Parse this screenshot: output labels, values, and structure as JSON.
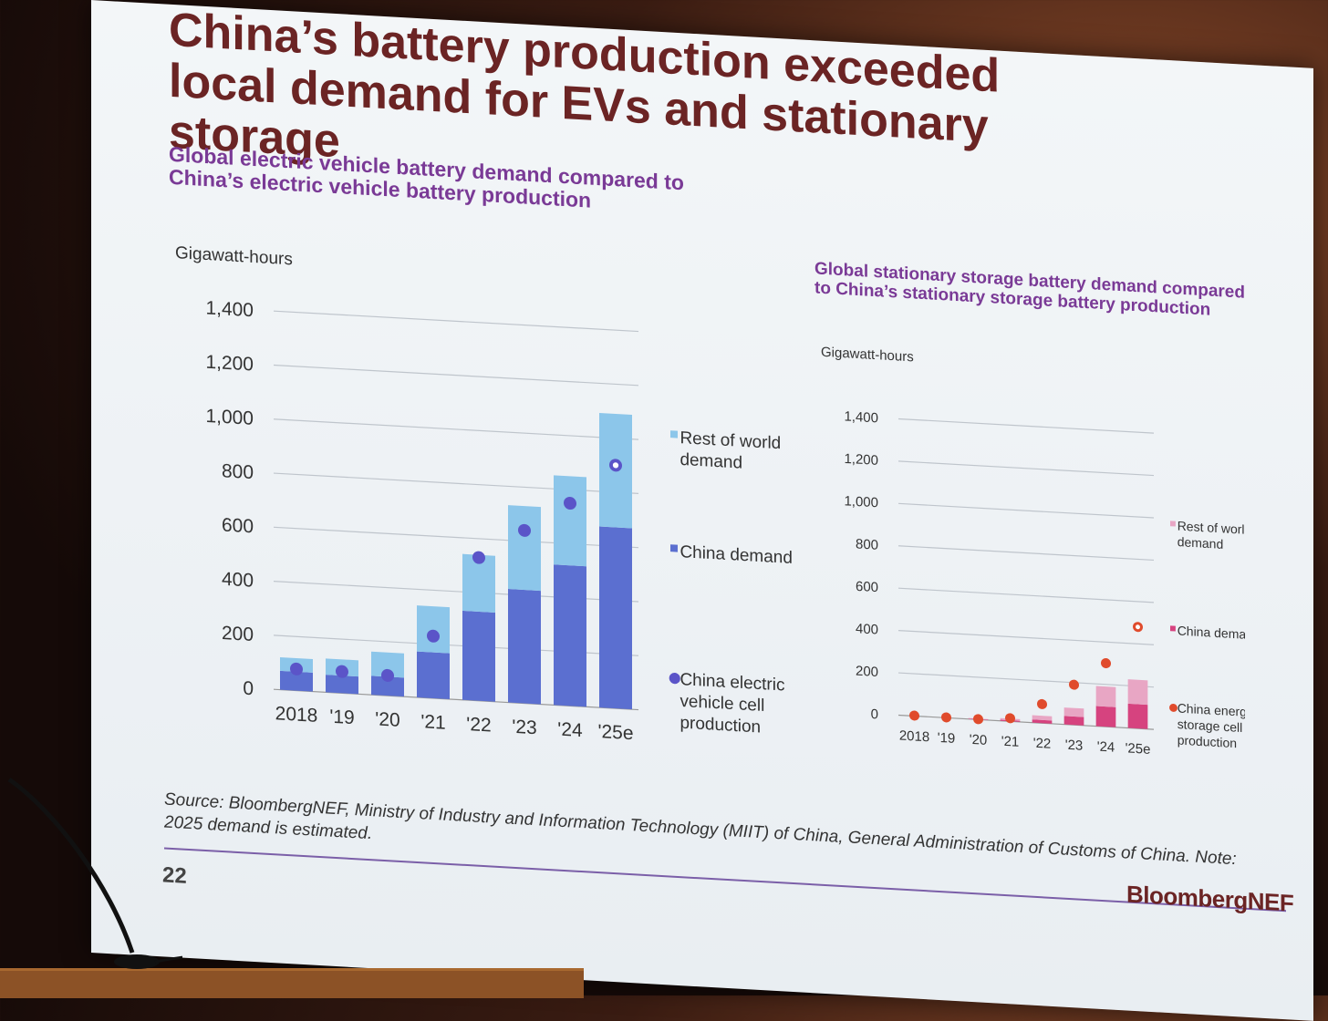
{
  "slide": {
    "title": "China’s battery production exceeded local demand for EVs and stationary storage",
    "source": "Source: BloombergNEF, Ministry of Industry and Information Technology (MIIT) of China, General Administration of Customs of China. Note: 2025 demand is estimated.",
    "page_number": "22",
    "brand": "BloombergNEF"
  },
  "chart_data": [
    {
      "type": "bar",
      "title": "Global electric vehicle battery demand compared to China’s electric vehicle battery production",
      "ylabel": "Gigawatt-hours",
      "ylim": [
        0,
        1400
      ],
      "yticks": [
        "0",
        "200",
        "400",
        "600",
        "800",
        "1,000",
        "1,200",
        "1,400"
      ],
      "categories": [
        "2018",
        "'19",
        "'20",
        "'21",
        "'22",
        "'23",
        "'24",
        "'25e"
      ],
      "series": [
        {
          "name": "China demand",
          "kind": "stacked-bar",
          "color": "#5b6fd0",
          "values": [
            70,
            65,
            70,
            170,
            330,
            420,
            520,
            670
          ]
        },
        {
          "name": "Rest of world demand",
          "kind": "stacked-bar",
          "color": "#8cc6ea",
          "values": [
            50,
            60,
            90,
            170,
            210,
            310,
            330,
            420
          ]
        },
        {
          "name": "China electric vehicle cell production",
          "kind": "marker",
          "color": "#5b54c8",
          "values": [
            80,
            80,
            75,
            230,
            530,
            640,
            750,
            900
          ]
        }
      ],
      "legend": [
        {
          "label": "Rest of world demand",
          "color": "#8cc6ea",
          "shape": "square"
        },
        {
          "label": "China demand",
          "color": "#5b6fd0",
          "shape": "square"
        },
        {
          "label": "China electric vehicle cell production",
          "color": "#5b54c8",
          "shape": "circle"
        }
      ]
    },
    {
      "type": "bar",
      "title": "Global stationary storage battery demand compared to China’s stationary storage battery production",
      "ylabel": "Gigawatt-hours",
      "ylim": [
        0,
        1400
      ],
      "yticks": [
        "0",
        "200",
        "400",
        "600",
        "800",
        "1,000",
        "1,200",
        "1,400"
      ],
      "categories": [
        "2018",
        "'19",
        "'20",
        "'21",
        "'22",
        "'23",
        "'24",
        "'25e"
      ],
      "series": [
        {
          "name": "China demand",
          "kind": "stacked-bar",
          "color": "#d6437f",
          "values": [
            0,
            0,
            2,
            5,
            15,
            40,
            95,
            115
          ]
        },
        {
          "name": "Rest of world demand",
          "kind": "stacked-bar",
          "color": "#e8a6c4",
          "values": [
            0,
            0,
            3,
            8,
            20,
            40,
            95,
            115
          ]
        },
        {
          "name": "China energy storage cell production",
          "kind": "marker",
          "color": "#e04b2c",
          "values": [
            2,
            2,
            2,
            15,
            90,
            190,
            300,
            480
          ]
        }
      ],
      "legend": [
        {
          "label": "Rest of world demand",
          "color": "#e8a6c4",
          "shape": "square"
        },
        {
          "label": "China demand",
          "color": "#d6437f",
          "shape": "square"
        },
        {
          "label": "China energy storage cell production",
          "color": "#e04b2c",
          "shape": "circle"
        }
      ]
    }
  ]
}
